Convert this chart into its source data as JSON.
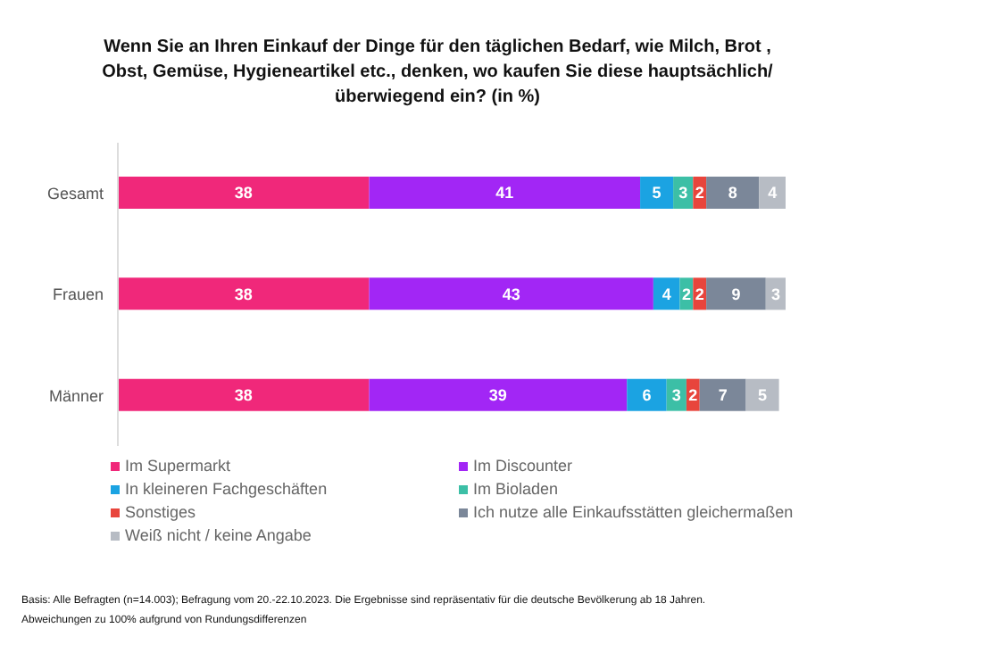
{
  "chart_data": {
    "type": "bar",
    "orientation": "horizontal",
    "stacked": true,
    "data_labels": true,
    "legend": "bottom",
    "title": "Wenn Sie an Ihren Einkauf der Dinge für den täglichen Bedarf, wie Milch, Brot , Obst, Gemüse, Hygieneartikel etc., denken, wo kaufen Sie diese hauptsächlich/überwiegend ein? (in %)",
    "categories": [
      "Gesamt",
      "Frauen",
      "Männer"
    ],
    "series": [
      {
        "name": "Im Supermarkt",
        "color": "#f0287a",
        "values": [
          38,
          38,
          38
        ]
      },
      {
        "name": "Im Discounter",
        "color": "#a226f5",
        "values": [
          41,
          43,
          39
        ]
      },
      {
        "name": "In kleineren Fachgeschäften",
        "color": "#1ba3e2",
        "values": [
          5,
          4,
          6
        ]
      },
      {
        "name": "Im Bioladen",
        "color": "#3cbfa6",
        "values": [
          3,
          2,
          3
        ]
      },
      {
        "name": "Sonstiges",
        "color": "#e8453c",
        "values": [
          2,
          2,
          2
        ]
      },
      {
        "name": "Ich nutze alle Einkaufsstätten gleichermaßen",
        "color": "#7b8799",
        "values": [
          8,
          9,
          7
        ]
      },
      {
        "name": "Weiß nicht / keine Angabe",
        "color": "#b7bcc4",
        "values": [
          4,
          3,
          5
        ]
      }
    ],
    "annotations": [
      "Basis: Alle Befragten (n=14.003); Befragung vom 20.-22.10.2023. Die Ergebnisse sind repräsentativ für die deutsche Bevölkerung ab 18 Jahren.",
      "Abweichungen zu 100% aufgrund von Rundungsdifferenzen"
    ]
  }
}
